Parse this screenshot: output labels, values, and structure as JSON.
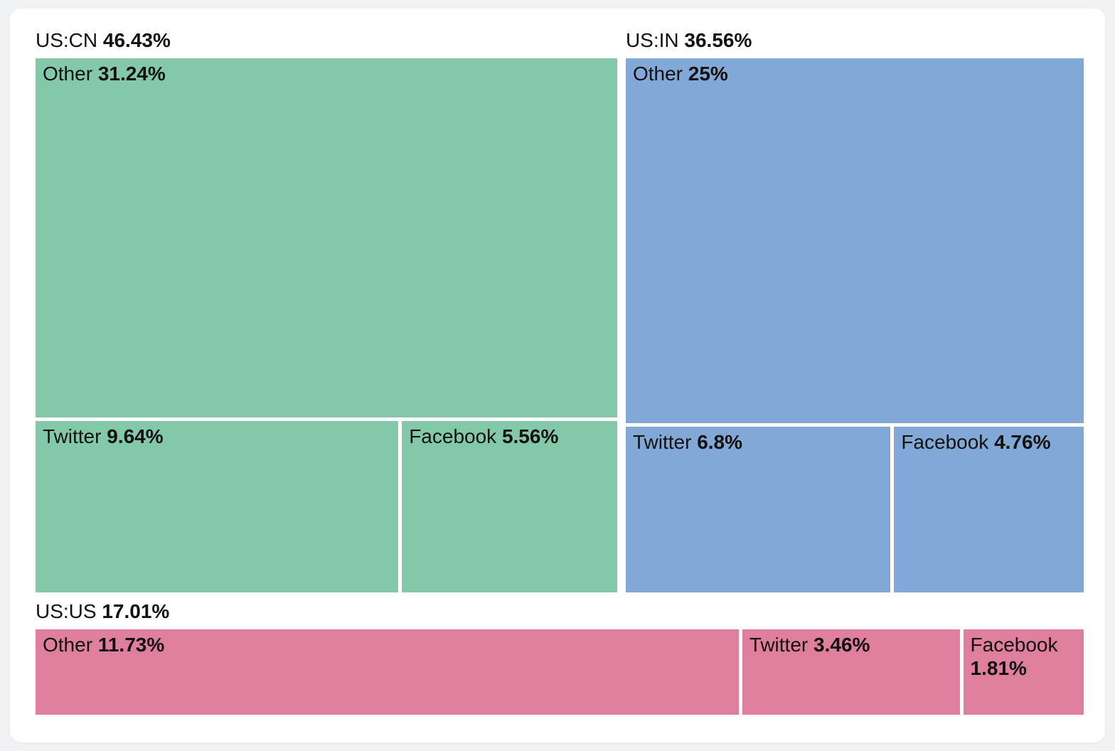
{
  "page": {
    "background_color": "#F1F2F4",
    "card_background_color": "#FFFFFF",
    "text_color": "#111111"
  },
  "chart_data": {
    "type": "treemap",
    "title": "",
    "unit": "%",
    "legend_position": "none",
    "groups": [
      {
        "name": "US:CN",
        "pct": 46.43,
        "pct_label": "46.43%",
        "color": "#84C8AA",
        "children": [
          {
            "name": "Other",
            "pct": 31.24,
            "pct_label": "31.24%"
          },
          {
            "name": "Twitter",
            "pct": 9.64,
            "pct_label": "9.64%"
          },
          {
            "name": "Facebook",
            "pct": 5.56,
            "pct_label": "5.56%"
          }
        ]
      },
      {
        "name": "US:IN",
        "pct": 36.56,
        "pct_label": "36.56%",
        "color": "#81A8D6",
        "children": [
          {
            "name": "Other",
            "pct": 25,
            "pct_label": "25%"
          },
          {
            "name": "Twitter",
            "pct": 6.8,
            "pct_label": "6.8%"
          },
          {
            "name": "Facebook",
            "pct": 4.76,
            "pct_label": "4.76%"
          }
        ]
      },
      {
        "name": "US:US",
        "pct": 17.01,
        "pct_label": "17.01%",
        "color": "#DF7F9D",
        "children": [
          {
            "name": "Other",
            "pct": 11.73,
            "pct_label": "11.73%"
          },
          {
            "name": "Twitter",
            "pct": 3.46,
            "pct_label": "3.46%"
          },
          {
            "name": "Facebook",
            "pct": 1.81,
            "pct_label": "1.81%"
          }
        ]
      }
    ]
  }
}
